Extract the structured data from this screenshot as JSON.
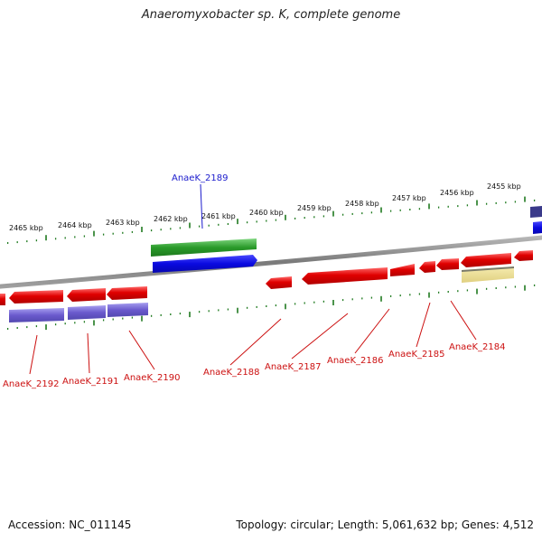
{
  "title": "Anaeromyxobacter sp. K, complete genome",
  "footer": {
    "accession": "Accession: NC_011145",
    "summary": "Topology: circular; Length: 5,061,632 bp; Genes: 4,512"
  },
  "colors": {
    "backbone": "#8a8a8a",
    "tick": "#1f7a1f",
    "forward_cds": "#2a9a2a",
    "forward_gene": "#0a0ae0",
    "reverse_cds": "#e00000",
    "reverse_gene": "#6a5acd",
    "misc": "#e6d890",
    "label_forward": "#1a1acc",
    "label_reverse": "#cc1010"
  },
  "scale_labels": [
    "2465 kbp",
    "2464 kbp",
    "2463 kbp",
    "2462 kbp",
    "2461 kbp",
    "2460 kbp",
    "2459 kbp",
    "2458 kbp",
    "2457 kbp",
    "2456 kbp",
    "2455 kbp"
  ],
  "gene_labels": {
    "forward": [
      "AnaeK_2189"
    ],
    "reverse": [
      "AnaeK_2192",
      "AnaeK_2191",
      "AnaeK_2190",
      "AnaeK_2188",
      "AnaeK_2187",
      "AnaeK_2186",
      "AnaeK_2185",
      "AnaeK_2184"
    ]
  }
}
